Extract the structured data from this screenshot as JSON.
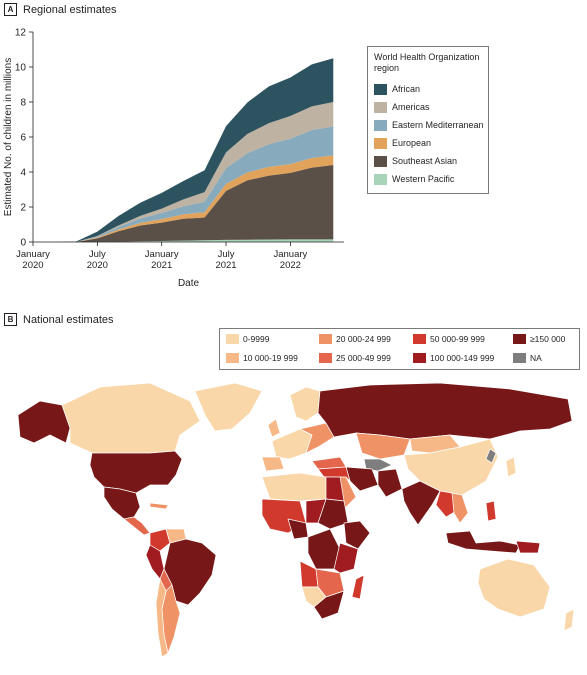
{
  "panel_a": {
    "label": "A",
    "title": "Regional estimates"
  },
  "panel_b": {
    "label": "B",
    "title": "National estimates"
  },
  "chart_data": {
    "type": "area",
    "stacked": true,
    "xlabel": "Date",
    "ylabel": "Estimated No. of children in millions",
    "ylim": [
      0,
      12
    ],
    "yticks": [
      "0",
      "2",
      "4",
      "6",
      "8",
      "10",
      "12"
    ],
    "xticks": [
      {
        "line1": "January",
        "line2": "2020"
      },
      {
        "line1": "July",
        "line2": "2020"
      },
      {
        "line1": "January",
        "line2": "2021"
      },
      {
        "line1": "July",
        "line2": "2021"
      },
      {
        "line1": "January",
        "line2": "2022"
      }
    ],
    "x": [
      "2020-01",
      "2020-03",
      "2020-05",
      "2020-07",
      "2020-09",
      "2020-11",
      "2021-01",
      "2021-03",
      "2021-05",
      "2021-07",
      "2021-09",
      "2021-11",
      "2022-01",
      "2022-03",
      "2022-05"
    ],
    "legend_title": "World Health Organization region",
    "legend_position": "right",
    "series": [
      {
        "name": "Western Pacific",
        "color": "#a8d5b9",
        "values": [
          0,
          0,
          0,
          0.01,
          0.02,
          0.04,
          0.06,
          0.08,
          0.1,
          0.12,
          0.13,
          0.14,
          0.15,
          0.15,
          0.15
        ]
      },
      {
        "name": "Southeast Asian",
        "color": "#5a5048",
        "values": [
          0,
          0,
          0,
          0.2,
          0.6,
          0.9,
          1.05,
          1.25,
          1.3,
          2.8,
          3.4,
          3.65,
          3.8,
          4.1,
          4.25
        ]
      },
      {
        "name": "European",
        "color": "#e1a35c",
        "values": [
          0,
          0,
          0,
          0.05,
          0.1,
          0.15,
          0.2,
          0.25,
          0.3,
          0.4,
          0.45,
          0.5,
          0.5,
          0.55,
          0.55
        ]
      },
      {
        "name": "Eastern Mediterranean",
        "color": "#88aabd",
        "values": [
          0,
          0,
          0,
          0.05,
          0.15,
          0.25,
          0.35,
          0.45,
          0.6,
          0.9,
          1.1,
          1.3,
          1.45,
          1.6,
          1.65
        ]
      },
      {
        "name": "Americas",
        "color": "#beb2a2",
        "values": [
          0,
          0,
          0,
          0.03,
          0.08,
          0.15,
          0.25,
          0.4,
          0.55,
          0.9,
          1.1,
          1.2,
          1.3,
          1.35,
          1.4
        ]
      },
      {
        "name": "African",
        "color": "#2e5360",
        "values": [
          0,
          0,
          0.02,
          0.25,
          0.55,
          0.75,
          0.9,
          1.05,
          1.25,
          1.5,
          1.8,
          2.1,
          2.2,
          2.4,
          2.5
        ]
      }
    ]
  },
  "map_legend": {
    "items": [
      {
        "label": "0-9999",
        "color": "#fad7a9"
      },
      {
        "label": "10 000-19 999",
        "color": "#f6b886"
      },
      {
        "label": "20 000-24 999",
        "color": "#ef9266"
      },
      {
        "label": "25 000-49 999",
        "color": "#e4664c"
      },
      {
        "label": "50 000-99 999",
        "color": "#d2392d"
      },
      {
        "label": "100 000-149 999",
        "color": "#a01c20"
      },
      {
        "label": "≥150 000",
        "color": "#771717"
      },
      {
        "label": "NA",
        "color": "#7e7e7e"
      }
    ]
  }
}
